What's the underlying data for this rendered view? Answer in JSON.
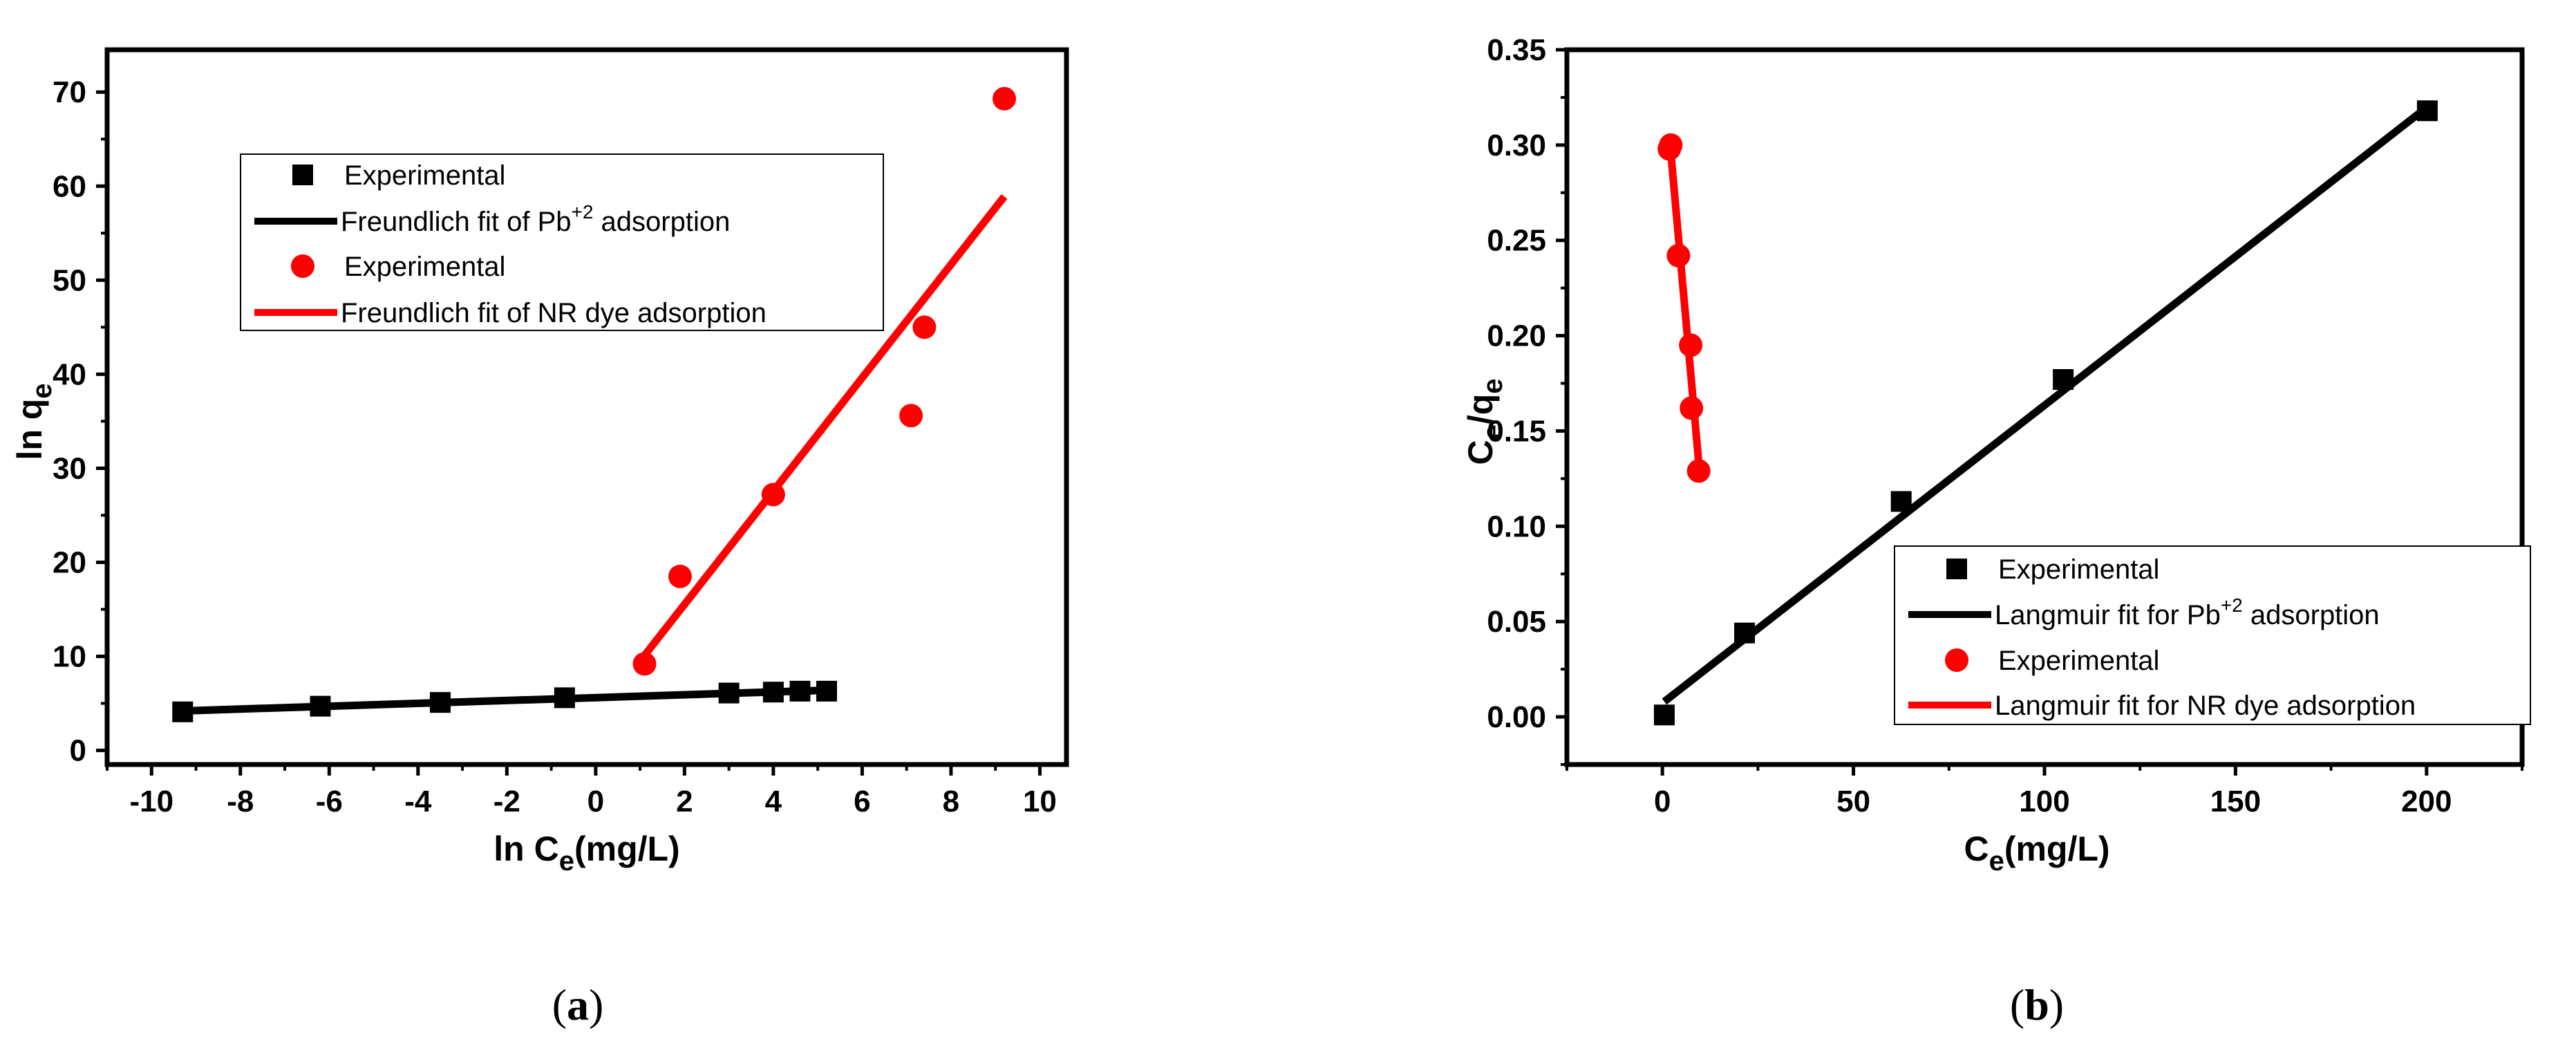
{
  "chart_data": [
    {
      "type": "scatter",
      "panel_label": "(a)",
      "xlabel": {
        "main": "ln C",
        "sub": "e",
        "tail": "(mg/L)"
      },
      "ylabel": {
        "main": "ln q",
        "sub": "e"
      },
      "xlim": [
        -11,
        10.6
      ],
      "ylim": [
        -1.5,
        74.5
      ],
      "xticks": [
        "-10",
        "-8",
        "-6",
        "-4",
        "-2",
        "0",
        "2",
        "4",
        "6",
        "8",
        "10"
      ],
      "yticks": [
        "0",
        "10",
        "20",
        "30",
        "40",
        "50",
        "60",
        "70"
      ],
      "legend_position": "upper-left",
      "series": [
        {
          "name": "Experimental",
          "kind": "points",
          "marker": "square",
          "color": "#000000",
          "x": [
            -9.3,
            -6.2,
            -3.5,
            -0.7,
            3.0,
            4.0,
            4.6,
            5.2
          ],
          "y": [
            4.1,
            4.7,
            5.1,
            5.6,
            6.1,
            6.2,
            6.3,
            6.3
          ]
        },
        {
          "name": "Freundlich fit of Pb",
          "sup": "+2",
          "name_tail": " adsorption",
          "kind": "line",
          "color": "#000000",
          "x": [
            -9.3,
            5.2
          ],
          "y": [
            4.2,
            6.4
          ]
        },
        {
          "name": "Experimental",
          "kind": "points",
          "marker": "circle",
          "color": "#ff0000",
          "x": [
            1.1,
            1.9,
            4.0,
            7.1,
            7.4,
            9.2
          ],
          "y": [
            9.2,
            18.5,
            27.2,
            35.6,
            45.0,
            69.3
          ]
        },
        {
          "name": "Freundlich fit of NR dye adsorption",
          "kind": "line",
          "color": "#ff0000",
          "x": [
            1.0,
            9.2
          ],
          "y": [
            9.5,
            58.9
          ]
        }
      ]
    },
    {
      "type": "scatter",
      "panel_label": "(b)",
      "xlabel": {
        "main": "C",
        "sub": "e",
        "tail": "(mg/L)"
      },
      "ylabel": {
        "main": "C",
        "sub": "e",
        "mid": "/q",
        "sub2": "e"
      },
      "xlim": [
        -25,
        225
      ],
      "ylim": [
        -0.025,
        0.35
      ],
      "xticks": [
        "0",
        "50",
        "100",
        "150",
        "200"
      ],
      "yticks": [
        "0.00",
        "0.05",
        "0.10",
        "0.15",
        "0.20",
        "0.25",
        "0.30",
        "0.35"
      ],
      "legend_position": "lower-right",
      "series": [
        {
          "name": "Experimental",
          "kind": "points",
          "marker": "square",
          "color": "#000000",
          "x": [
            0.5,
            21.5,
            62.5,
            104.9,
            200.2
          ],
          "y": [
            0.001,
            0.044,
            0.113,
            0.177,
            0.318
          ]
        },
        {
          "name": "Langmuir fit for Pb",
          "sup": "+2",
          "name_tail": " adsorption",
          "kind": "line",
          "color": "#000000",
          "x": [
            0.5,
            200.2
          ],
          "y": [
            0.008,
            0.32
          ]
        },
        {
          "name": "Experimental",
          "kind": "points",
          "marker": "circle",
          "color": "#ff0000",
          "x": [
            1.8,
            2.2,
            4.2,
            7.4,
            7.6,
            9.5
          ],
          "y": [
            0.298,
            0.3,
            0.242,
            0.195,
            0.162,
            0.129
          ]
        },
        {
          "name": "Langmuir fit for NR dye adsorption",
          "kind": "line",
          "color": "#ff0000",
          "x": [
            1.8,
            9.8
          ],
          "y": [
            0.305,
            0.127
          ]
        }
      ]
    }
  ]
}
